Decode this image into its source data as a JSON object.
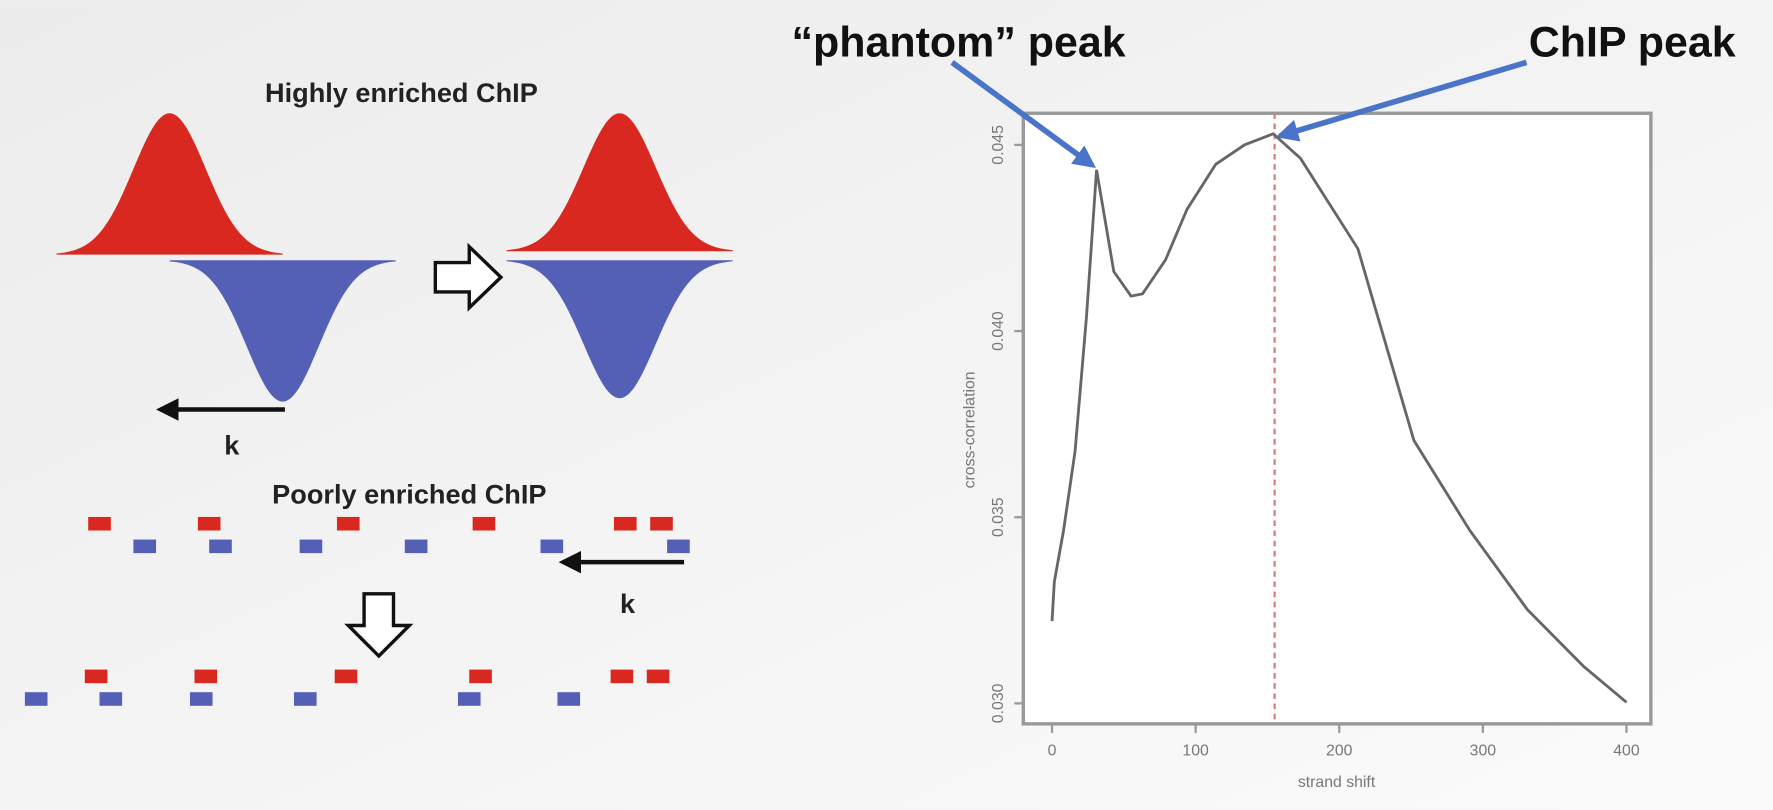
{
  "diagram": {
    "high_title": "Highly enriched ChIP",
    "high_shift": "k",
    "poor_title": "Poorly enriched ChIP",
    "poor_shift": "k"
  },
  "chart_data": {
    "type": "line",
    "annotations": [
      "“phantom” peak",
      "ChIP peak"
    ],
    "x_label": "strand shift",
    "y_label": "cross-correlation",
    "x": [
      0,
      1.6,
      8,
      16,
      24,
      31,
      35,
      43,
      55,
      63,
      79,
      94,
      114,
      134,
      154,
      173,
      213,
      252,
      291,
      331,
      370,
      400
    ],
    "series": [
      {
        "color": "#666666",
        "values": [
          0.03221,
          0.03327,
          0.03464,
          0.03676,
          0.04039,
          0.04433,
          0.04342,
          0.0416,
          0.04094,
          0.041,
          0.04191,
          0.04327,
          0.04448,
          0.045,
          0.0453,
          0.04464,
          0.04221,
          0.03706,
          0.03464,
          0.03252,
          0.031,
          0.03003
        ]
      }
    ],
    "vline_x": 155,
    "vline_color": "#d08080",
    "xlim": [
      -20,
      417
    ],
    "ylim": [
      0.02945,
      0.04585
    ],
    "xticks": [
      0,
      100,
      200,
      300,
      400
    ],
    "yticks": [
      {
        "value": 0.03,
        "label": "0.030"
      },
      {
        "value": 0.035,
        "label": "0.035"
      },
      {
        "value": 0.04,
        "label": "0.040"
      },
      {
        "value": 0.045,
        "label": "0.045"
      }
    ]
  }
}
